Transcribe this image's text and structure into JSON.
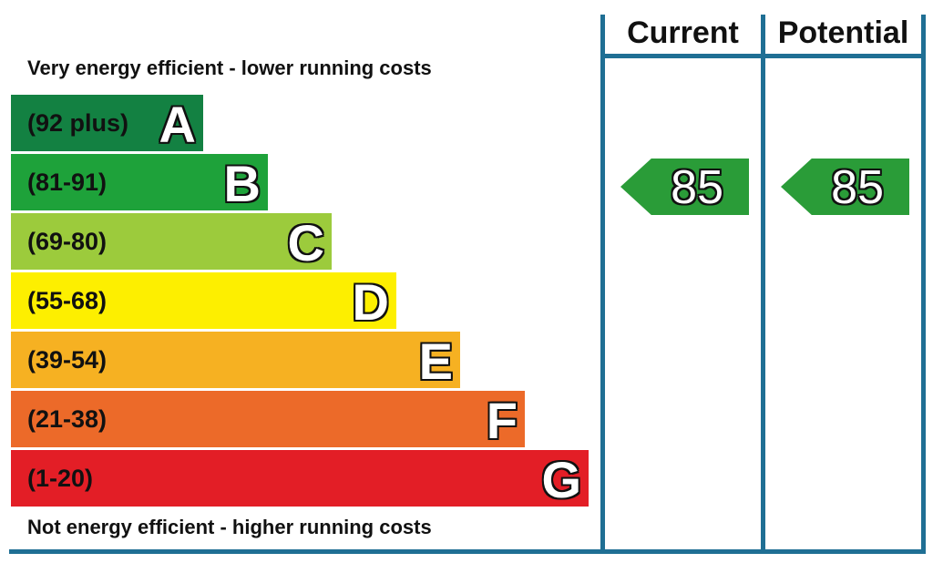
{
  "headers": {
    "current": "Current",
    "potential": "Potential"
  },
  "captions": {
    "top": "Very energy efficient - lower running costs",
    "bottom": "Not energy efficient - higher running costs"
  },
  "chart_data": {
    "type": "bar",
    "categories": [
      "A",
      "B",
      "C",
      "D",
      "E",
      "F",
      "G"
    ],
    "ranges": [
      "(92 plus)",
      "(81-91)",
      "(69-80)",
      "(55-68)",
      "(39-54)",
      "(21-38)",
      "(1-20)"
    ],
    "bands": [
      {
        "letter": "A",
        "range": "(92 plus)",
        "min": 92,
        "max": null,
        "color": "#138142"
      },
      {
        "letter": "B",
        "range": "(81-91)",
        "min": 81,
        "max": 91,
        "color": "#1ea23a"
      },
      {
        "letter": "C",
        "range": "(69-80)",
        "min": 69,
        "max": 80,
        "color": "#9ccb3c"
      },
      {
        "letter": "D",
        "range": "(55-68)",
        "min": 55,
        "max": 68,
        "color": "#fdef00"
      },
      {
        "letter": "E",
        "range": "(39-54)",
        "min": 39,
        "max": 54,
        "color": "#f6b122"
      },
      {
        "letter": "F",
        "range": "(21-38)",
        "min": 21,
        "max": 38,
        "color": "#ec6a29"
      },
      {
        "letter": "G",
        "range": "(1-20)",
        "min": 1,
        "max": 20,
        "color": "#e31e26"
      }
    ],
    "current": {
      "value": 85,
      "band": "B",
      "color": "#2a9c38"
    },
    "potential": {
      "value": 85,
      "band": "B",
      "color": "#2a9c38"
    }
  },
  "colors": {
    "frame": "#1f6f94"
  }
}
